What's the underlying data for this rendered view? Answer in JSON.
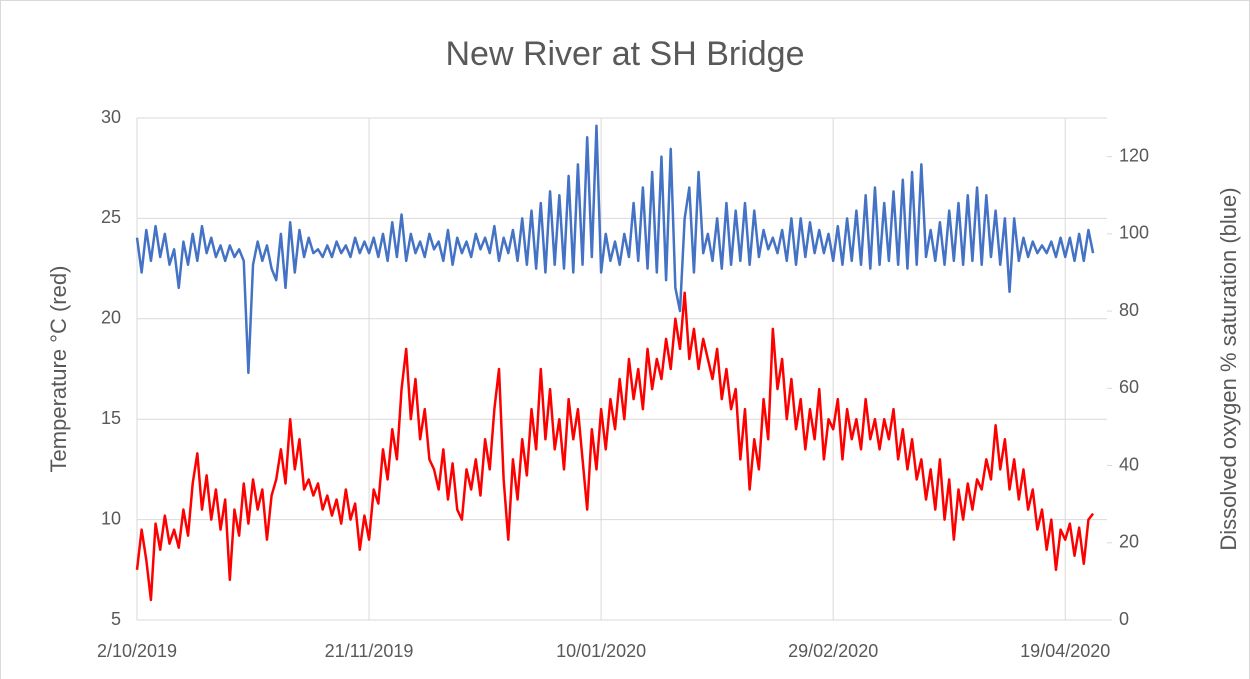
{
  "chart_data": {
    "type": "line",
    "title": "New River at SH Bridge",
    "ylabel": "Temperature °C (red)",
    "y2label": "Dissolved oxygen % saturation (blue)",
    "grid": true,
    "xlim": [
      "2019-10-02",
      "2020-04-28"
    ],
    "xticks": [
      {
        "value": "2019-10-02",
        "label": "2/10/2019"
      },
      {
        "value": "2019-11-21",
        "label": "21/11/2019"
      },
      {
        "value": "2020-01-10",
        "label": "10/01/2020"
      },
      {
        "value": "2020-02-29",
        "label": "29/02/2020"
      },
      {
        "value": "2020-04-19",
        "label": "19/04/2020"
      }
    ],
    "ylim": [
      5,
      30
    ],
    "yticks": [
      5,
      10,
      15,
      20,
      25,
      30
    ],
    "y2lim": [
      0,
      130
    ],
    "y2ticks": [
      0,
      20,
      40,
      60,
      80,
      100,
      120
    ],
    "x": [
      "2019-10-02",
      "2019-10-03",
      "2019-10-04",
      "2019-10-05",
      "2019-10-06",
      "2019-10-07",
      "2019-10-08",
      "2019-10-09",
      "2019-10-10",
      "2019-10-11",
      "2019-10-12",
      "2019-10-13",
      "2019-10-14",
      "2019-10-15",
      "2019-10-16",
      "2019-10-17",
      "2019-10-18",
      "2019-10-19",
      "2019-10-20",
      "2019-10-21",
      "2019-10-22",
      "2019-10-23",
      "2019-10-24",
      "2019-10-25",
      "2019-10-26",
      "2019-10-27",
      "2019-10-28",
      "2019-10-29",
      "2019-10-30",
      "2019-10-31",
      "2019-11-01",
      "2019-11-02",
      "2019-11-03",
      "2019-11-04",
      "2019-11-05",
      "2019-11-06",
      "2019-11-07",
      "2019-11-08",
      "2019-11-09",
      "2019-11-10",
      "2019-11-11",
      "2019-11-12",
      "2019-11-13",
      "2019-11-14",
      "2019-11-15",
      "2019-11-16",
      "2019-11-17",
      "2019-11-18",
      "2019-11-19",
      "2019-11-20",
      "2019-11-21",
      "2019-11-22",
      "2019-11-23",
      "2019-11-24",
      "2019-11-25",
      "2019-11-26",
      "2019-11-27",
      "2019-11-28",
      "2019-11-29",
      "2019-11-30",
      "2019-12-01",
      "2019-12-02",
      "2019-12-03",
      "2019-12-04",
      "2019-12-05",
      "2019-12-06",
      "2019-12-07",
      "2019-12-08",
      "2019-12-09",
      "2019-12-10",
      "2019-12-11",
      "2019-12-12",
      "2019-12-13",
      "2019-12-14",
      "2019-12-15",
      "2019-12-16",
      "2019-12-17",
      "2019-12-18",
      "2019-12-19",
      "2019-12-20",
      "2019-12-21",
      "2019-12-22",
      "2019-12-23",
      "2019-12-24",
      "2019-12-25",
      "2019-12-26",
      "2019-12-27",
      "2019-12-28",
      "2019-12-29",
      "2019-12-30",
      "2019-12-31",
      "2020-01-01",
      "2020-01-02",
      "2020-01-03",
      "2020-01-04",
      "2020-01-05",
      "2020-01-06",
      "2020-01-07",
      "2020-01-08",
      "2020-01-09",
      "2020-01-10",
      "2020-01-11",
      "2020-01-12",
      "2020-01-13",
      "2020-01-14",
      "2020-01-15",
      "2020-01-16",
      "2020-01-17",
      "2020-01-18",
      "2020-01-19",
      "2020-01-20",
      "2020-01-21",
      "2020-01-22",
      "2020-01-23",
      "2020-01-24",
      "2020-01-25",
      "2020-01-26",
      "2020-01-27",
      "2020-01-28",
      "2020-01-29",
      "2020-01-30",
      "2020-01-31",
      "2020-02-01",
      "2020-02-02",
      "2020-02-03",
      "2020-02-04",
      "2020-02-05",
      "2020-02-06",
      "2020-02-07",
      "2020-02-08",
      "2020-02-09",
      "2020-02-10",
      "2020-02-11",
      "2020-02-12",
      "2020-02-13",
      "2020-02-14",
      "2020-02-15",
      "2020-02-16",
      "2020-02-17",
      "2020-02-18",
      "2020-02-19",
      "2020-02-20",
      "2020-02-21",
      "2020-02-22",
      "2020-02-23",
      "2020-02-24",
      "2020-02-25",
      "2020-02-26",
      "2020-02-27",
      "2020-02-28",
      "2020-02-29",
      "2020-03-01",
      "2020-03-02",
      "2020-03-03",
      "2020-03-04",
      "2020-03-05",
      "2020-03-06",
      "2020-03-07",
      "2020-03-08",
      "2020-03-09",
      "2020-03-10",
      "2020-03-11",
      "2020-03-12",
      "2020-03-13",
      "2020-03-14",
      "2020-03-15",
      "2020-03-16",
      "2020-03-17",
      "2020-03-18",
      "2020-03-19",
      "2020-03-20",
      "2020-03-21",
      "2020-03-22",
      "2020-03-23",
      "2020-03-24",
      "2020-03-25",
      "2020-03-26",
      "2020-03-27",
      "2020-03-28",
      "2020-03-29",
      "2020-03-30",
      "2020-03-31",
      "2020-04-01",
      "2020-04-02",
      "2020-04-03",
      "2020-04-04",
      "2020-04-05",
      "2020-04-06",
      "2020-04-07",
      "2020-04-08",
      "2020-04-09",
      "2020-04-10",
      "2020-04-11",
      "2020-04-12",
      "2020-04-13",
      "2020-04-14",
      "2020-04-15",
      "2020-04-16",
      "2020-04-17",
      "2020-04-18",
      "2020-04-19",
      "2020-04-20",
      "2020-04-21",
      "2020-04-22",
      "2020-04-23",
      "2020-04-24",
      "2020-04-25"
    ],
    "series": [
      {
        "color": "#ff0000",
        "values": [
          7.5,
          9.5,
          8.0,
          6.0,
          9.8,
          8.5,
          10.2,
          8.8,
          9.5,
          8.6,
          10.5,
          9.2,
          11.8,
          13.3,
          10.5,
          12.2,
          10.0,
          11.5,
          9.5,
          11.0,
          7.0,
          10.5,
          9.2,
          11.8,
          9.8,
          12.0,
          10.5,
          11.5,
          9.0,
          11.2,
          12.0,
          13.5,
          11.8,
          15.0,
          12.5,
          14.0,
          11.5,
          12.0,
          11.2,
          11.8,
          10.5,
          11.2,
          10.2,
          11.0,
          9.8,
          11.5,
          10.0,
          10.8,
          8.5,
          10.2,
          9.0,
          11.5,
          10.8,
          13.5,
          12.0,
          14.5,
          13.0,
          16.5,
          18.5,
          15.0,
          17.0,
          14.0,
          15.5,
          13.0,
          12.5,
          11.5,
          13.5,
          11.0,
          12.8,
          10.5,
          10.0,
          12.5,
          11.5,
          13.0,
          11.2,
          14.0,
          12.5,
          15.5,
          17.5,
          12.0,
          9.0,
          13.0,
          11.0,
          14.0,
          12.2,
          15.5,
          13.5,
          17.5,
          14.0,
          16.5,
          13.5,
          15.0,
          12.5,
          16.0,
          14.0,
          15.5,
          13.0,
          10.5,
          14.5,
          12.5,
          15.5,
          13.5,
          16.0,
          14.5,
          17.0,
          15.0,
          18.0,
          16.0,
          17.5,
          15.5,
          18.5,
          16.5,
          18.0,
          17.0,
          19.0,
          17.5,
          20.0,
          18.5,
          21.3,
          18.0,
          19.5,
          17.5,
          19.0,
          18.0,
          17.0,
          18.5,
          16.0,
          17.5,
          15.5,
          16.5,
          13.0,
          15.5,
          11.5,
          14.0,
          12.5,
          16.0,
          14.0,
          19.5,
          16.5,
          18.0,
          15.0,
          17.0,
          14.5,
          16.0,
          13.5,
          15.5,
          14.0,
          16.5,
          13.0,
          15.0,
          14.5,
          16.0,
          13.0,
          15.5,
          14.0,
          15.0,
          13.5,
          16.0,
          14.0,
          15.0,
          13.5,
          15.0,
          14.0,
          15.5,
          13.0,
          14.5,
          12.5,
          14.0,
          12.0,
          13.0,
          11.0,
          12.5,
          10.5,
          13.0,
          10.0,
          12.0,
          9.0,
          11.5,
          10.0,
          11.8,
          10.5,
          12.0,
          11.5,
          13.0,
          12.0,
          14.7,
          12.5,
          14.0,
          11.5,
          13.0,
          11.0,
          12.5,
          10.5,
          11.5,
          9.5,
          10.5,
          8.5,
          10.0,
          7.5,
          9.5,
          9.0,
          9.8,
          8.2,
          9.6,
          7.8,
          10.0,
          10.3
        ]
      },
      {
        "color": "#4472c4",
        "axis": "y2",
        "values": [
          99,
          90,
          101,
          93,
          102,
          94,
          100,
          92,
          96,
          86,
          98,
          92,
          100,
          93,
          102,
          95,
          99,
          94,
          97,
          93,
          97,
          94,
          96,
          93,
          64,
          92,
          98,
          93,
          97,
          91,
          88,
          100,
          86,
          103,
          90,
          101,
          94,
          99,
          95,
          96,
          94,
          97,
          94,
          98,
          95,
          97,
          94,
          99,
          95,
          98,
          95,
          99,
          94,
          100,
          93,
          103,
          94,
          105,
          93,
          100,
          95,
          98,
          94,
          100,
          96,
          98,
          93,
          101,
          92,
          99,
          95,
          98,
          94,
          100,
          96,
          99,
          95,
          102,
          93,
          99,
          95,
          101,
          93,
          104,
          92,
          106,
          91,
          108,
          90,
          111,
          92,
          110,
          91,
          115,
          90,
          118,
          92,
          125,
          94,
          128,
          90,
          100,
          93,
          98,
          92,
          100,
          94,
          108,
          93,
          112,
          91,
          116,
          90,
          120,
          88,
          122,
          86,
          80,
          104,
          112,
          90,
          116,
          95,
          100,
          93,
          104,
          91,
          108,
          92,
          106,
          93,
          108,
          92,
          106,
          94,
          101,
          96,
          99,
          95,
          101,
          93,
          104,
          92,
          104,
          94,
          103,
          95,
          101,
          95,
          100,
          93,
          102,
          92,
          104,
          93,
          106,
          92,
          110,
          91,
          112,
          92,
          108,
          93,
          111,
          92,
          114,
          91,
          116,
          92,
          118,
          94,
          101,
          93,
          103,
          92,
          106,
          93,
          108,
          92,
          110,
          93,
          112,
          92,
          110,
          94,
          106,
          92,
          104,
          85,
          104,
          93,
          99,
          94,
          98,
          95,
          97,
          95,
          98,
          94,
          99,
          94,
          99,
          93,
          100,
          93,
          101,
          95
        ]
      }
    ]
  }
}
